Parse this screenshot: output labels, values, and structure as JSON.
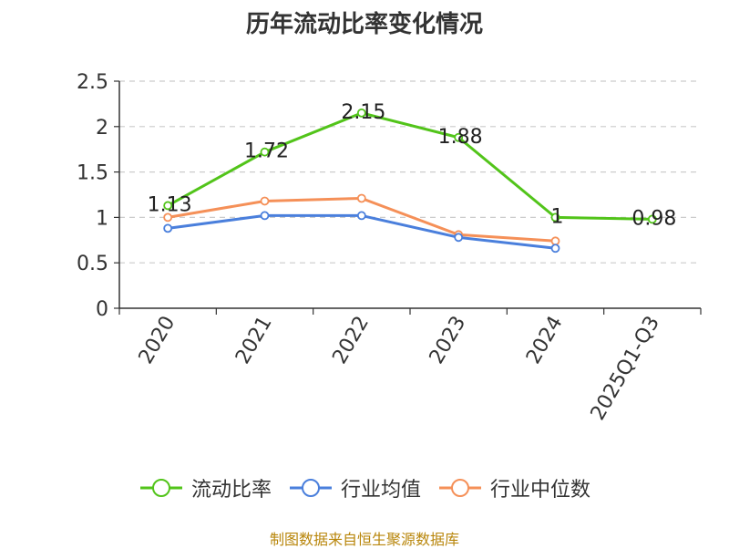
{
  "chart_data": {
    "type": "line",
    "title": "历年流动比率变化情况",
    "categories": [
      "2020",
      "2021",
      "2022",
      "2023",
      "2024",
      "2025Q1-Q3"
    ],
    "ylim": [
      0,
      2.5
    ],
    "yticks": [
      "0",
      "0.5",
      "1",
      "1.5",
      "2",
      "2.5"
    ],
    "grid": true,
    "legend_position": "bottom",
    "series": [
      {
        "name": "流动比率",
        "color": "#52c41a",
        "values": [
          1.13,
          1.72,
          2.15,
          1.88,
          1,
          0.98
        ],
        "labels": [
          "1.13",
          "1.72",
          "2.15",
          "1.88",
          "1",
          "0.98"
        ]
      },
      {
        "name": "行业均值",
        "color": "#4a7fdc",
        "values": [
          0.88,
          1.02,
          1.02,
          0.78,
          0.66,
          null
        ]
      },
      {
        "name": "行业中位数",
        "color": "#f59058",
        "values": [
          1.0,
          1.18,
          1.21,
          0.81,
          0.74,
          null
        ]
      }
    ]
  },
  "footer": {
    "source": "制图数据来自恒生聚源数据库"
  }
}
